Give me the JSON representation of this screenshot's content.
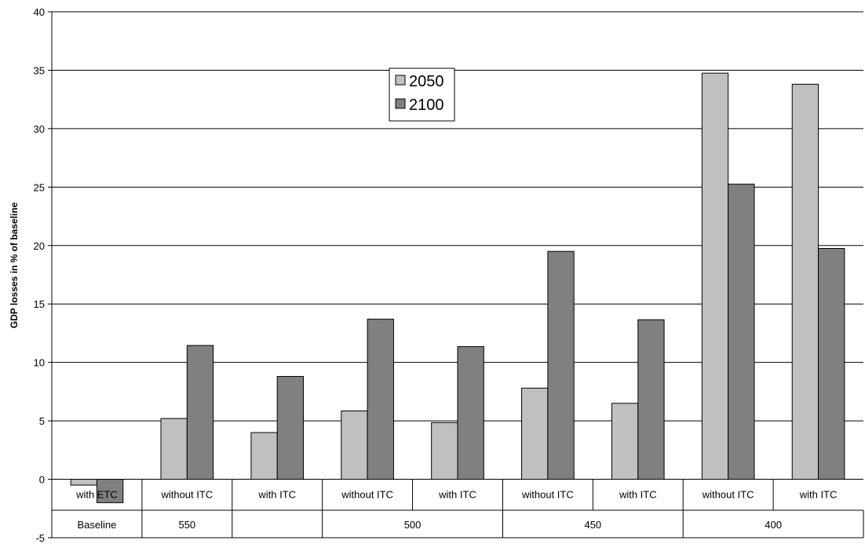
{
  "chart_data": {
    "type": "bar",
    "title": "",
    "xlabel": "",
    "ylabel": "GDP losses in % of baseline",
    "ylim": [
      -5,
      40
    ],
    "yticks": [
      -5,
      0,
      5,
      10,
      15,
      20,
      25,
      30,
      35,
      40
    ],
    "grid": true,
    "legend_position": "top-center",
    "categories": [
      "with ETC",
      "without ITC",
      "with ITC",
      "without ITC",
      "with ITC",
      "without ITC",
      "with ITC",
      "without ITC",
      "with ITC"
    ],
    "category_groups": [
      {
        "label": "Baseline",
        "span": [
          0,
          0
        ]
      },
      {
        "label": "550",
        "span": [
          1,
          1
        ]
      },
      {
        "label": "",
        "span": [
          2,
          2
        ]
      },
      {
        "label": "500",
        "span": [
          3,
          4
        ]
      },
      {
        "label": "450",
        "span": [
          5,
          6
        ]
      },
      {
        "label": "400",
        "span": [
          7,
          8
        ]
      }
    ],
    "series": [
      {
        "name": "2050",
        "color": "#c0c0c0",
        "values": [
          -0.5,
          5.2,
          4.0,
          5.85,
          4.85,
          7.8,
          6.5,
          34.75,
          33.8
        ]
      },
      {
        "name": "2100",
        "color": "#808080",
        "values": [
          -2.0,
          11.45,
          8.8,
          13.7,
          11.35,
          19.5,
          13.65,
          25.25,
          19.75
        ]
      }
    ]
  }
}
